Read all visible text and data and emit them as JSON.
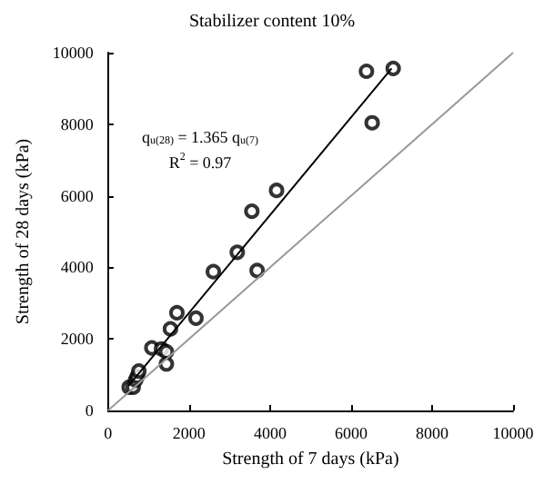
{
  "chart_data": {
    "type": "scatter",
    "title": "Stabilizer content 10%",
    "xlabel": "Strength of 7 days (kPa)",
    "ylabel": "Strength of 28 days (kPa)",
    "xlim": [
      0,
      10000
    ],
    "ylim": [
      0,
      10000
    ],
    "xticks": [
      0,
      2000,
      4000,
      6000,
      8000,
      10000
    ],
    "yticks": [
      0,
      2000,
      4000,
      6000,
      8000,
      10000
    ],
    "grid": false,
    "marker": "circle",
    "annotations": [
      "q$_{u(28)}$ = 1.365 q$_{u(7)}$",
      "R$^{2}$ = 0.97"
    ],
    "series": [
      {
        "color": "#000000",
        "x": [
          520,
          620,
          680,
          720,
          760,
          1080,
          1320,
          1440,
          1440,
          1540,
          1700,
          2170,
          2600,
          3190,
          3680,
          3550,
          4160,
          6380,
          7040,
          6520
        ],
        "values": [
          650,
          650,
          850,
          950,
          1100,
          1750,
          1720,
          1640,
          1300,
          2280,
          2730,
          2580,
          3880,
          4420,
          3910,
          5570,
          6150,
          9480,
          9560,
          8040
        ]
      },
      {
        "type": "line",
        "color": "#000000",
        "marker": "none",
        "line_style": "solid",
        "x": [
          500,
          7000
        ],
        "values": [
          680,
          9560
        ]
      },
      {
        "type": "line",
        "color": "#999999",
        "marker": "none",
        "line_style": "solid",
        "x": [
          0,
          10000
        ],
        "values": [
          0,
          10000
        ]
      }
    ]
  }
}
